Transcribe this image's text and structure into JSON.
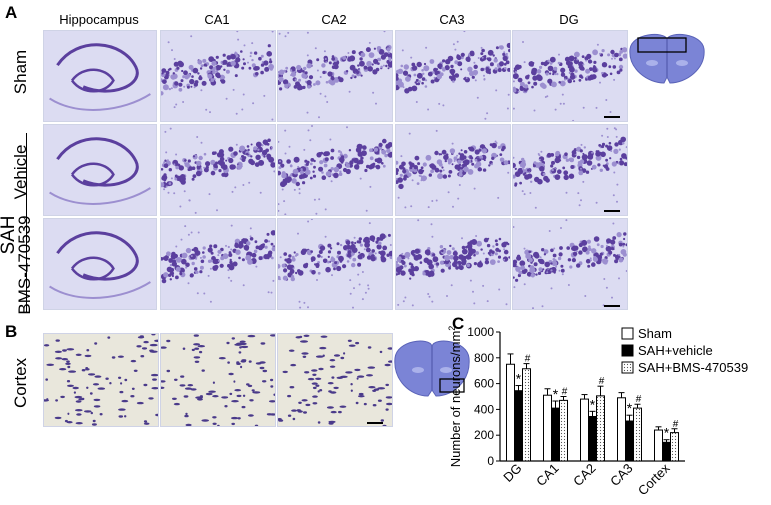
{
  "panels": {
    "a": "A",
    "b": "B",
    "c": "C"
  },
  "panel_a": {
    "columns": [
      "Hippocampus",
      "CA1",
      "CA2",
      "CA3",
      "DG"
    ],
    "rows": [
      "Sham",
      "Vehicle",
      "BMS-470539"
    ],
    "group_label": "SAH"
  },
  "panel_b": {
    "row_label": "Cortex"
  },
  "colors": {
    "tissue_bg": "#dcdcf2",
    "stain": "#5b3f9e",
    "stain_light": "#9c8fd0",
    "cortex_bg": "#e9e7dc",
    "cortex_cell": "#4a3a8a"
  },
  "chart_data": {
    "type": "bar",
    "ylabel": "Number of neurons/mm",
    "ylabel_sup": "2",
    "categories": [
      "DG",
      "CA1",
      "CA2",
      "CA3",
      "Cortex"
    ],
    "ylim": [
      0,
      1000
    ],
    "series": [
      {
        "name": "Sham",
        "fill": "white",
        "values": [
          750,
          510,
          480,
          490,
          240
        ],
        "errors": [
          80,
          50,
          35,
          40,
          25
        ]
      },
      {
        "name": "SAH+vehicle",
        "fill": "black",
        "values": [
          545,
          410,
          345,
          310,
          145
        ],
        "errors": [
          40,
          55,
          40,
          45,
          20
        ]
      },
      {
        "name": "SAH+BMS-470539",
        "fill": "dotted",
        "values": [
          715,
          470,
          505,
          410,
          220
        ],
        "errors": [
          40,
          30,
          75,
          30,
          30
        ]
      }
    ],
    "markers": {
      "vehicle": [
        "*",
        "*",
        "*",
        "*",
        "*"
      ],
      "bms": [
        "#",
        "#",
        "#",
        "#",
        "#"
      ]
    },
    "legend_position": "top-right"
  }
}
